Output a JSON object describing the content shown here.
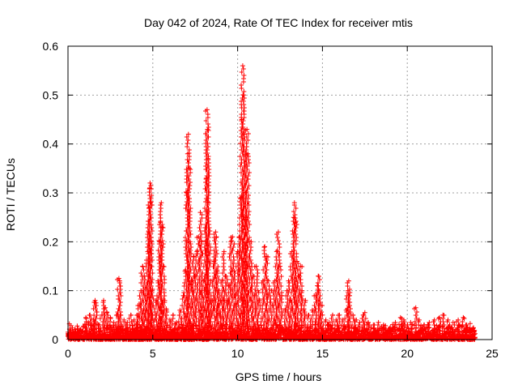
{
  "chart_data": {
    "type": "scatter",
    "title": "Day 042 of 2024, Rate Of TEC Index for receiver mtis",
    "xlabel": "GPS time / hours",
    "ylabel": "ROTI / TECUs",
    "xlim": [
      0,
      25
    ],
    "ylim": [
      0,
      0.6
    ],
    "x_ticks": [
      0,
      5,
      10,
      15,
      20,
      25
    ],
    "y_ticks": [
      0,
      0.1,
      0.2,
      0.3,
      0.4,
      0.5,
      0.6
    ],
    "x_tick_labels": [
      "0",
      "5",
      "10",
      "15",
      "20",
      "25"
    ],
    "y_tick_labels": [
      "0",
      "0.1",
      "0.2",
      "0.3",
      "0.4",
      "0.5",
      "0.6"
    ],
    "grid": true,
    "marker": "plus",
    "series_color": "#ff0000",
    "series": [
      {
        "name": "ROTI",
        "points": [
          [
            0.0,
            0.015
          ],
          [
            0.05,
            0.012
          ],
          [
            0.1,
            0.01
          ],
          [
            0.3,
            0.008
          ],
          [
            0.5,
            0.012
          ],
          [
            0.7,
            0.02
          ],
          [
            0.8,
            0.018
          ],
          [
            1.0,
            0.03
          ],
          [
            1.05,
            0.045
          ],
          [
            1.2,
            0.035
          ],
          [
            1.3,
            0.05
          ],
          [
            1.5,
            0.04
          ],
          [
            1.6,
            0.08
          ],
          [
            1.65,
            0.075
          ],
          [
            1.8,
            0.03
          ],
          [
            2.0,
            0.05
          ],
          [
            2.1,
            0.08
          ],
          [
            2.2,
            0.065
          ],
          [
            2.3,
            0.055
          ],
          [
            2.5,
            0.045
          ],
          [
            2.7,
            0.035
          ],
          [
            2.9,
            0.05
          ],
          [
            3.0,
            0.125
          ],
          [
            3.05,
            0.12
          ],
          [
            3.1,
            0.05
          ],
          [
            3.3,
            0.04
          ],
          [
            3.5,
            0.035
          ],
          [
            3.7,
            0.05
          ],
          [
            3.9,
            0.04
          ],
          [
            4.1,
            0.05
          ],
          [
            4.2,
            0.07
          ],
          [
            4.3,
            0.1
          ],
          [
            4.4,
            0.15
          ],
          [
            4.5,
            0.13
          ],
          [
            4.55,
            0.09
          ],
          [
            4.6,
            0.06
          ],
          [
            4.7,
            0.18
          ],
          [
            4.75,
            0.22
          ],
          [
            4.8,
            0.27
          ],
          [
            4.82,
            0.31
          ],
          [
            4.84,
            0.32
          ],
          [
            4.86,
            0.28
          ],
          [
            4.9,
            0.2
          ],
          [
            4.95,
            0.1
          ],
          [
            5.0,
            0.05
          ],
          [
            5.1,
            0.04
          ],
          [
            5.2,
            0.08
          ],
          [
            5.3,
            0.12
          ],
          [
            5.4,
            0.2
          ],
          [
            5.45,
            0.24
          ],
          [
            5.5,
            0.28
          ],
          [
            5.55,
            0.23
          ],
          [
            5.6,
            0.15
          ],
          [
            5.7,
            0.08
          ],
          [
            5.8,
            0.06
          ],
          [
            6.0,
            0.04
          ],
          [
            6.2,
            0.05
          ],
          [
            6.4,
            0.035
          ],
          [
            6.6,
            0.06
          ],
          [
            6.8,
            0.09
          ],
          [
            6.9,
            0.14
          ],
          [
            7.0,
            0.3
          ],
          [
            7.05,
            0.38
          ],
          [
            7.1,
            0.42
          ],
          [
            7.15,
            0.35
          ],
          [
            7.2,
            0.2
          ],
          [
            7.3,
            0.12
          ],
          [
            7.4,
            0.17
          ],
          [
            7.5,
            0.13
          ],
          [
            7.6,
            0.18
          ],
          [
            7.7,
            0.21
          ],
          [
            7.8,
            0.26
          ],
          [
            7.85,
            0.2
          ],
          [
            7.9,
            0.1
          ],
          [
            8.0,
            0.12
          ],
          [
            8.1,
            0.2
          ],
          [
            8.15,
            0.33
          ],
          [
            8.2,
            0.47
          ],
          [
            8.22,
            0.43
          ],
          [
            8.25,
            0.37
          ],
          [
            8.3,
            0.28
          ],
          [
            8.4,
            0.12
          ],
          [
            8.5,
            0.08
          ],
          [
            8.6,
            0.16
          ],
          [
            8.7,
            0.22
          ],
          [
            8.75,
            0.21
          ],
          [
            8.8,
            0.14
          ],
          [
            8.9,
            0.1
          ],
          [
            9.0,
            0.08
          ],
          [
            9.1,
            0.12
          ],
          [
            9.2,
            0.18
          ],
          [
            9.3,
            0.13
          ],
          [
            9.4,
            0.08
          ],
          [
            9.5,
            0.11
          ],
          [
            9.6,
            0.2
          ],
          [
            9.7,
            0.21
          ],
          [
            9.8,
            0.14
          ],
          [
            9.9,
            0.09
          ],
          [
            10.0,
            0.18
          ],
          [
            10.1,
            0.21
          ],
          [
            10.2,
            0.29
          ],
          [
            10.25,
            0.45
          ],
          [
            10.3,
            0.56
          ],
          [
            10.35,
            0.5
          ],
          [
            10.4,
            0.42
          ],
          [
            10.45,
            0.3
          ],
          [
            10.5,
            0.25
          ],
          [
            10.55,
            0.43
          ],
          [
            10.6,
            0.38
          ],
          [
            10.7,
            0.15
          ],
          [
            10.8,
            0.2
          ],
          [
            10.9,
            0.13
          ],
          [
            11.0,
            0.09
          ],
          [
            11.1,
            0.15
          ],
          [
            11.2,
            0.1
          ],
          [
            11.3,
            0.08
          ],
          [
            11.5,
            0.12
          ],
          [
            11.6,
            0.19
          ],
          [
            11.7,
            0.17
          ],
          [
            11.8,
            0.12
          ],
          [
            12.0,
            0.1
          ],
          [
            12.1,
            0.07
          ],
          [
            12.2,
            0.12
          ],
          [
            12.3,
            0.18
          ],
          [
            12.4,
            0.22
          ],
          [
            12.5,
            0.15
          ],
          [
            12.6,
            0.09
          ],
          [
            12.8,
            0.06
          ],
          [
            12.9,
            0.1
          ],
          [
            13.0,
            0.12
          ],
          [
            13.1,
            0.08
          ],
          [
            13.2,
            0.18
          ],
          [
            13.3,
            0.25
          ],
          [
            13.35,
            0.28
          ],
          [
            13.4,
            0.24
          ],
          [
            13.5,
            0.16
          ],
          [
            13.6,
            0.13
          ],
          [
            13.7,
            0.15
          ],
          [
            13.8,
            0.1
          ],
          [
            13.9,
            0.06
          ],
          [
            14.0,
            0.08
          ],
          [
            14.2,
            0.05
          ],
          [
            14.4,
            0.06
          ],
          [
            14.6,
            0.09
          ],
          [
            14.7,
            0.11
          ],
          [
            14.75,
            0.13
          ],
          [
            14.8,
            0.1
          ],
          [
            14.9,
            0.07
          ],
          [
            15.0,
            0.05
          ],
          [
            15.2,
            0.04
          ],
          [
            15.4,
            0.035
          ],
          [
            15.6,
            0.05
          ],
          [
            15.8,
            0.04
          ],
          [
            16.0,
            0.05
          ],
          [
            16.2,
            0.04
          ],
          [
            16.4,
            0.06
          ],
          [
            16.5,
            0.1
          ],
          [
            16.55,
            0.12
          ],
          [
            16.6,
            0.09
          ],
          [
            16.8,
            0.05
          ],
          [
            17.0,
            0.04
          ],
          [
            17.2,
            0.035
          ],
          [
            17.4,
            0.05
          ],
          [
            17.5,
            0.055
          ],
          [
            17.7,
            0.035
          ],
          [
            18.0,
            0.03
          ],
          [
            18.3,
            0.035
          ],
          [
            18.6,
            0.03
          ],
          [
            19.0,
            0.025
          ],
          [
            19.3,
            0.035
          ],
          [
            19.6,
            0.045
          ],
          [
            19.8,
            0.04
          ],
          [
            20.0,
            0.03
          ],
          [
            20.2,
            0.035
          ],
          [
            20.5,
            0.065
          ],
          [
            20.7,
            0.04
          ],
          [
            21.0,
            0.03
          ],
          [
            21.3,
            0.035
          ],
          [
            21.6,
            0.04
          ],
          [
            21.9,
            0.045
          ],
          [
            22.1,
            0.05
          ],
          [
            22.4,
            0.04
          ],
          [
            22.7,
            0.035
          ],
          [
            23.0,
            0.04
          ],
          [
            23.3,
            0.045
          ],
          [
            23.5,
            0.03
          ],
          [
            23.8,
            0.02
          ],
          [
            24.0,
            0.012
          ]
        ]
      }
    ]
  }
}
